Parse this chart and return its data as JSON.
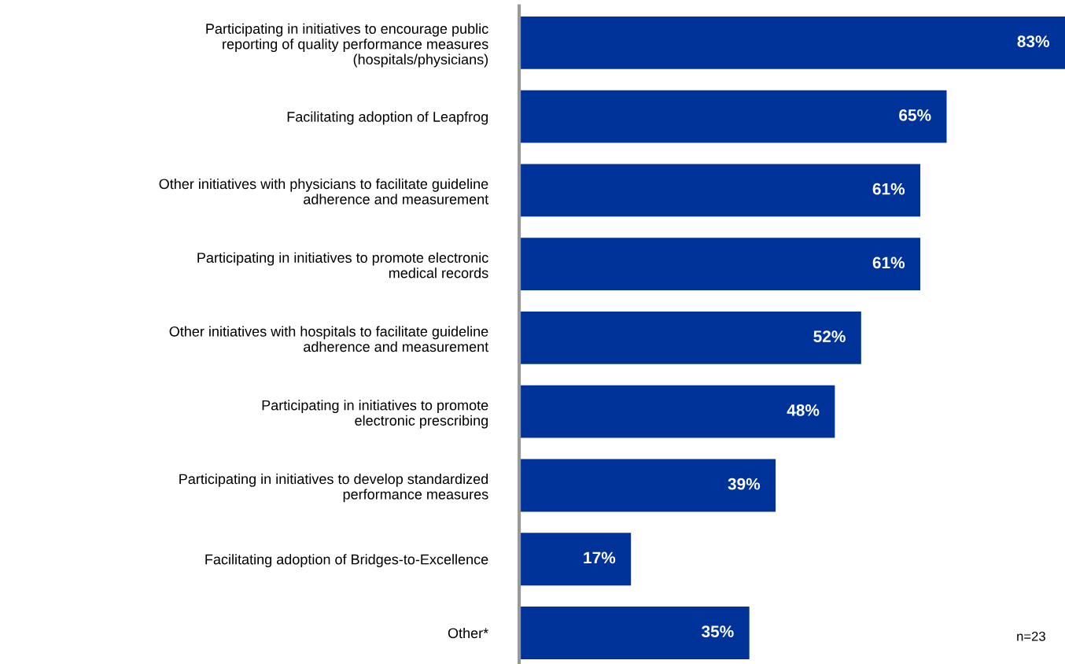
{
  "chart_data": {
    "type": "bar",
    "orientation": "horizontal",
    "categories": [
      "Participating in initiatives to encourage public\nreporting of quality performance measures\n(hospitals/physicians)",
      "Facilitating adoption of Leapfrog",
      "Other initiatives with physicians to facilitate guideline\nadherence and measurement",
      "Participating in initiatives to promote electronic\nmedical records",
      "Other initiatives with hospitals to facilitate guideline\nadherence and measurement",
      "Participating in initiatives to promote\nelectronic prescribing",
      "Participating in initiatives to develop standardized\nperformance measures",
      "Facilitating adoption of Bridges-to-Excellence",
      "Other*"
    ],
    "values": [
      83,
      65,
      61,
      61,
      52,
      48,
      39,
      17,
      35
    ],
    "value_labels": [
      "83%",
      "65%",
      "61%",
      "61%",
      "52%",
      "48%",
      "39%",
      "17%",
      "35%"
    ],
    "color": "#003399",
    "annotations": [
      "n=23"
    ],
    "grid": false,
    "legend": false,
    "tick_labels": "y"
  }
}
